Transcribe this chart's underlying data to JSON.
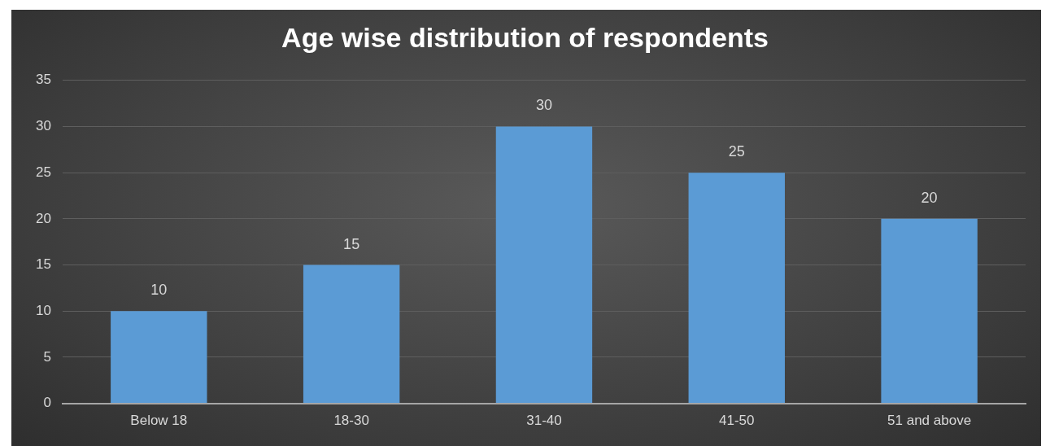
{
  "chart_data": {
    "type": "bar",
    "title": "Age wise distribution of respondents",
    "categories": [
      "Below 18",
      "18-30",
      "31-40",
      "41-50",
      "51 and above"
    ],
    "values": [
      10,
      15,
      30,
      25,
      20
    ],
    "color": "#5b9bd5",
    "ylim": [
      0,
      35
    ],
    "yticks": [
      0,
      5,
      10,
      15,
      20,
      25,
      30,
      35
    ],
    "grid": "y",
    "data_labels": true,
    "legend": false
  }
}
